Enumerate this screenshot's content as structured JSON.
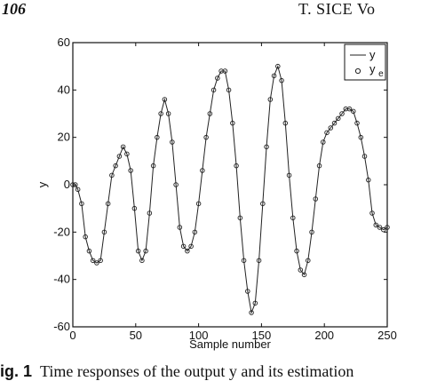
{
  "header": {
    "page_number": "106",
    "running_head": "T. SICE   Vo"
  },
  "caption": {
    "label": "ig. 1",
    "text": "Time responses of the output y and its estimation"
  },
  "chart_data": {
    "type": "line",
    "title": "",
    "xlabel": "Sample number",
    "ylabel": "y",
    "xlim": [
      0,
      250
    ],
    "ylim": [
      -60,
      60
    ],
    "xticks": [
      0,
      50,
      100,
      150,
      200,
      250
    ],
    "yticks": [
      -60,
      -40,
      -20,
      0,
      20,
      40,
      60
    ],
    "grid": false,
    "legend_position": "top-right",
    "legend": {
      "line_label": "y",
      "marker_label_main": "y",
      "marker_label_sub": "e"
    },
    "series": [
      {
        "name": "y",
        "style": "line",
        "color": "#222222",
        "x": [
          0,
          2,
          4,
          7,
          10,
          13,
          16,
          19,
          22,
          25,
          28,
          31,
          34,
          37,
          40,
          43,
          46,
          49,
          52,
          55,
          58,
          61,
          64,
          67,
          70,
          73,
          76,
          79,
          82,
          85,
          88,
          91,
          94,
          97,
          100,
          103,
          106,
          109,
          112,
          115,
          118,
          121,
          124,
          127,
          130,
          133,
          136,
          139,
          142,
          145,
          148,
          151,
          154,
          157,
          160,
          163,
          166,
          169,
          172,
          175,
          178,
          181,
          184,
          187,
          190,
          193,
          196,
          199,
          202,
          205,
          208,
          211,
          214,
          217,
          220,
          223,
          226,
          229,
          232,
          235,
          238,
          241,
          244,
          247,
          250
        ],
        "y": [
          0,
          0,
          -2,
          -8,
          -22,
          -28,
          -32,
          -33,
          -32,
          -20,
          -8,
          4,
          8,
          12,
          16,
          13,
          6,
          -10,
          -28,
          -32,
          -28,
          -12,
          8,
          20,
          30,
          36,
          30,
          18,
          0,
          -18,
          -26,
          -28,
          -26,
          -20,
          -8,
          6,
          20,
          30,
          40,
          45,
          48,
          48,
          40,
          26,
          8,
          -14,
          -32,
          -45,
          -54,
          -50,
          -32,
          -8,
          16,
          36,
          46,
          50,
          44,
          26,
          4,
          -14,
          -28,
          -36,
          -38,
          -32,
          -20,
          -6,
          8,
          18,
          22,
          24,
          26,
          28,
          30,
          32,
          32,
          31,
          26,
          20,
          12,
          2,
          -12,
          -17,
          -18,
          -19,
          -18
        ]
      },
      {
        "name": "y_e",
        "style": "marker",
        "color": "#222222",
        "x": [
          0,
          2,
          4,
          7,
          10,
          13,
          16,
          19,
          22,
          25,
          28,
          31,
          34,
          37,
          40,
          43,
          46,
          49,
          52,
          55,
          58,
          61,
          64,
          67,
          70,
          73,
          76,
          79,
          82,
          85,
          88,
          91,
          94,
          97,
          100,
          103,
          106,
          109,
          112,
          115,
          118,
          121,
          124,
          127,
          130,
          133,
          136,
          139,
          142,
          145,
          148,
          151,
          154,
          157,
          160,
          163,
          166,
          169,
          172,
          175,
          178,
          181,
          184,
          187,
          190,
          193,
          196,
          199,
          202,
          205,
          208,
          211,
          214,
          217,
          220,
          223,
          226,
          229,
          232,
          235,
          238,
          241,
          244,
          247,
          250
        ],
        "y": [
          0,
          0,
          -2,
          -8,
          -22,
          -28,
          -32,
          -33,
          -32,
          -20,
          -8,
          4,
          8,
          12,
          16,
          13,
          6,
          -10,
          -28,
          -32,
          -28,
          -12,
          8,
          20,
          30,
          36,
          30,
          18,
          0,
          -18,
          -26,
          -28,
          -26,
          -20,
          -8,
          6,
          20,
          30,
          40,
          45,
          48,
          48,
          40,
          26,
          8,
          -14,
          -32,
          -45,
          -54,
          -50,
          -32,
          -8,
          16,
          36,
          46,
          50,
          44,
          26,
          4,
          -14,
          -28,
          -36,
          -38,
          -32,
          -20,
          -6,
          8,
          18,
          22,
          24,
          26,
          28,
          30,
          32,
          32,
          31,
          26,
          20,
          12,
          2,
          -12,
          -17,
          -18,
          -19,
          -18
        ]
      }
    ]
  }
}
